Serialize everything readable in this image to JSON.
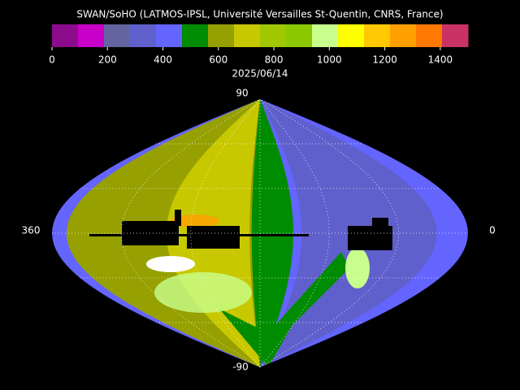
{
  "title": "SWAN/SoHO (LATMOS-IPSL, Université Versailles St-Quentin, CNRS, France)",
  "colorbar": {
    "colors": [
      "#8c0a8c",
      "#c800c8",
      "#6464a0",
      "#6060cc",
      "#6464ff",
      "#008c00",
      "#96a000",
      "#c8c800",
      "#a0c800",
      "#8cc800",
      "#c8ff8c",
      "#ffff00",
      "#ffc800",
      "#ffa000",
      "#ff7800",
      "#c83264"
    ],
    "range": [
      0,
      1500
    ],
    "ticks": [
      0,
      200,
      400,
      600,
      800,
      1000,
      1200,
      1400
    ]
  },
  "date": "2025/06/14",
  "labels": {
    "top": "90",
    "bottom": "-90",
    "left": "360",
    "right": "0"
  }
}
